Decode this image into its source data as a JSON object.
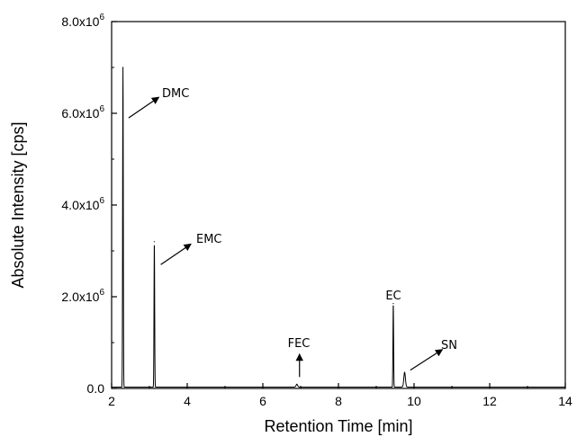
{
  "chart_data": {
    "type": "line",
    "title": "",
    "xlabel": "Retention Time [min]",
    "ylabel": "Absolute Intensity [cps]",
    "xlim": [
      2,
      14
    ],
    "ylim": [
      0,
      8000000
    ],
    "x_ticks": [
      {
        "value": 2,
        "label": "2"
      },
      {
        "value": 4,
        "label": "4"
      },
      {
        "value": 6,
        "label": "6"
      },
      {
        "value": 8,
        "label": "8"
      },
      {
        "value": 10,
        "label": "10"
      },
      {
        "value": 12,
        "label": "12"
      },
      {
        "value": 14,
        "label": "14"
      }
    ],
    "y_ticks": [
      {
        "value": 0,
        "label": "0.0"
      },
      {
        "value": 2000000,
        "label": "2.0x10",
        "exp": "6"
      },
      {
        "value": 4000000,
        "label": "4.0x10",
        "exp": "6"
      },
      {
        "value": 6000000,
        "label": "6.0x10",
        "exp": "6"
      },
      {
        "value": 8000000,
        "label": "8.0x10",
        "exp": "6"
      }
    ],
    "grid": false,
    "line_color": "#000000",
    "baseline": 30000,
    "peaks": [
      {
        "label": "DMC",
        "x": 2.3,
        "y": 7000000
      },
      {
        "label": "EMC",
        "x": 3.13,
        "y": 3200000
      },
      {
        "label": "FEC",
        "x": 6.9,
        "y": 90000
      },
      {
        "label": "EC",
        "x": 9.45,
        "y": 1850000
      },
      {
        "label": "SN",
        "x": 9.75,
        "y": 350000
      }
    ],
    "annotations": [
      {
        "text": "DMC",
        "style": "arrow",
        "tail": [
          2.45,
          5900000
        ],
        "head": [
          3.25,
          6350000
        ]
      },
      {
        "text": "EMC",
        "style": "arrow",
        "tail": [
          3.3,
          2700000
        ],
        "head": [
          4.1,
          3150000
        ]
      },
      {
        "text": "FEC",
        "style": "arrow-up",
        "tail": [
          6.97,
          250000
        ],
        "head": [
          6.97,
          750000
        ]
      },
      {
        "text": "EC",
        "style": "label"
      },
      {
        "text": "SN",
        "style": "arrow",
        "tail": [
          9.9,
          400000
        ],
        "head": [
          10.75,
          850000
        ]
      }
    ]
  }
}
